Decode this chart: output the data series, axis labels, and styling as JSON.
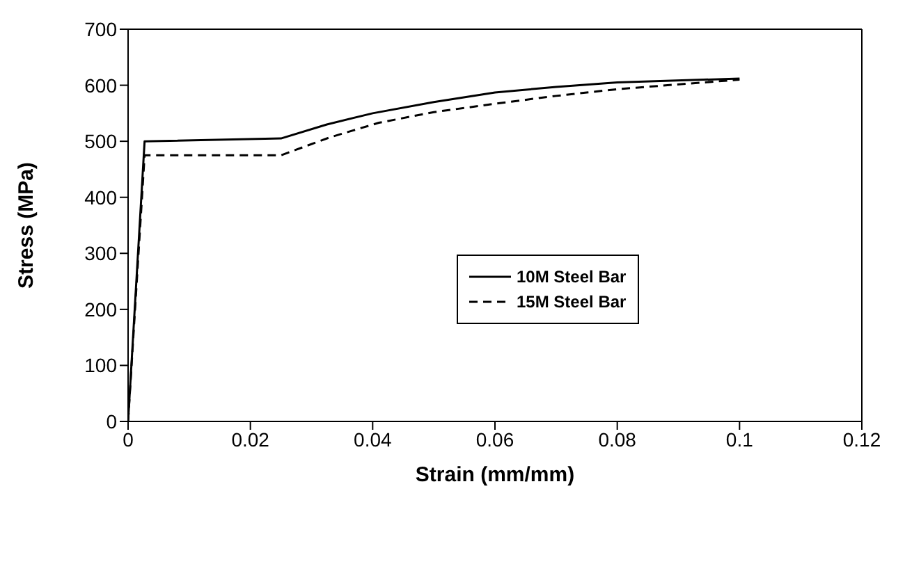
{
  "chart_data": {
    "type": "line",
    "xlabel": "Strain (mm/mm)",
    "ylabel": "Stress (MPa)",
    "xlim": [
      0,
      0.12
    ],
    "xticks": [
      0,
      0.02,
      0.04,
      0.06,
      0.08,
      0.1,
      0.12
    ],
    "ylim": [
      0,
      700
    ],
    "yticks": [
      0,
      100,
      200,
      300,
      400,
      500,
      600,
      700
    ],
    "legend": "right",
    "marker": "none",
    "series": [
      {
        "name": "10M Steel Bar",
        "color": "#000000",
        "line_style": "solid",
        "x": [
          0,
          0.0027,
          0.025,
          0.0325,
          0.04,
          0.05,
          0.06,
          0.07,
          0.08,
          0.1
        ],
        "values": [
          0,
          500,
          505,
          530,
          550,
          570,
          587,
          597,
          605,
          612
        ]
      },
      {
        "name": "15M Steel Bar",
        "color": "#000000",
        "line_style": "dashed",
        "x": [
          0,
          0.0027,
          0.025,
          0.033,
          0.041,
          0.05,
          0.06,
          0.07,
          0.08,
          0.1
        ],
        "values": [
          0,
          475,
          475,
          507,
          533,
          552,
          567,
          581,
          593,
          610
        ]
      }
    ]
  }
}
